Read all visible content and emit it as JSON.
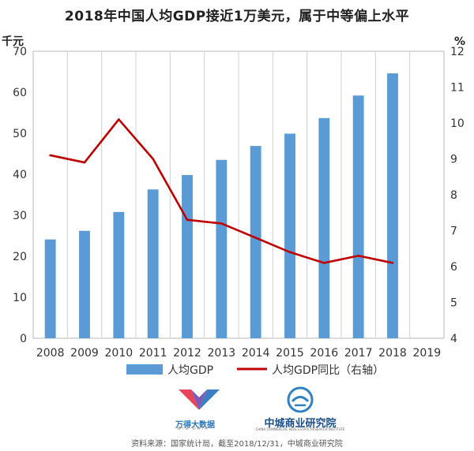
{
  "title": "2018年中国人均GDP接近1万美元，属于中等偏上水平",
  "chart_data": {
    "type": "bar",
    "categories": [
      "2008",
      "2009",
      "2010",
      "2011",
      "2012",
      "2013",
      "2014",
      "2015",
      "2016",
      "2017",
      "2018",
      "2019"
    ],
    "series": [
      {
        "name": "人均GDP",
        "type": "bar",
        "axis": "left",
        "color": "#5b9bd5",
        "values": [
          24.1,
          26.2,
          30.8,
          36.3,
          39.8,
          43.5,
          46.9,
          49.9,
          53.7,
          59.2,
          64.6,
          null
        ]
      },
      {
        "name": "人均GDP同比（右轴）",
        "type": "line",
        "axis": "right",
        "color": "#c00000",
        "values": [
          9.1,
          8.9,
          10.1,
          9.0,
          7.3,
          7.2,
          6.8,
          6.4,
          6.1,
          6.3,
          6.1,
          null
        ]
      }
    ],
    "y_left": {
      "unit": "千元",
      "min": 0,
      "max": 70,
      "ticks": [
        0,
        10,
        20,
        30,
        40,
        50,
        60,
        70
      ]
    },
    "y_right": {
      "unit": "%",
      "min": 4,
      "max": 12,
      "ticks": [
        4,
        5,
        6,
        7,
        8,
        9,
        10,
        11,
        12
      ]
    },
    "grid": "vertical",
    "legend": "bottom"
  },
  "logos": {
    "wind": {
      "name": "万得大数据",
      "sub": "WIN DATA"
    },
    "zc": {
      "name": "中城商业研究院",
      "sub": "CHINA COMMERCIAL REAL ESTATE RESEARCH INSTITUTE"
    }
  },
  "source": "资料来源：国家统计局，截至2018/12/31，中城商业研究院"
}
